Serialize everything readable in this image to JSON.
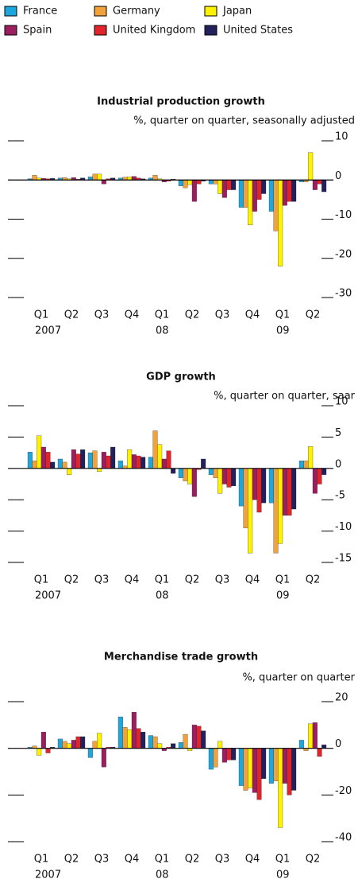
{
  "chart_data": [
    {
      "type": "bar",
      "title": "Industrial production growth",
      "subtitle": "%, quarter on quarter, seasonally adjusted",
      "categories": [
        "Q1",
        "Q2",
        "Q3",
        "Q4",
        "Q1",
        "Q2",
        "Q3",
        "Q4",
        "Q1",
        "Q2"
      ],
      "years": [
        "2007",
        null,
        null,
        null,
        "08",
        null,
        null,
        null,
        "09",
        null
      ],
      "ylim": [
        -30,
        10
      ],
      "yticks": [
        10,
        0,
        -10,
        -20,
        -30
      ],
      "series": [
        {
          "name": "France",
          "color": "#1ea7df",
          "values": [
            0.3,
            0.5,
            0.8,
            0.5,
            0.5,
            -1.5,
            -1.0,
            -7.0,
            -8.0,
            -0.5
          ]
        },
        {
          "name": "Germany",
          "color": "#f2a23a",
          "values": [
            1.2,
            0.6,
            1.5,
            0.7,
            1.2,
            -2.0,
            -1.0,
            -7.0,
            -13.0,
            -0.5
          ]
        },
        {
          "name": "Japan",
          "color": "#fff200",
          "values": [
            0.5,
            0.3,
            1.5,
            0.8,
            0.3,
            -1.2,
            -3.5,
            -11.5,
            -22.0,
            7.0
          ]
        },
        {
          "name": "Spain",
          "color": "#9b1f5f",
          "values": [
            0.4,
            0.6,
            -1.0,
            0.9,
            -0.5,
            -5.5,
            -4.5,
            -8.0,
            -6.5,
            -2.5
          ]
        },
        {
          "name": "United Kingdom",
          "color": "#e1232a",
          "values": [
            0.3,
            0.2,
            0.3,
            0.5,
            -0.3,
            -1.0,
            -2.5,
            -5.0,
            -5.5,
            -1.0
          ]
        },
        {
          "name": "United States",
          "color": "#22215e",
          "values": [
            0.4,
            0.5,
            0.5,
            0.3,
            0.2,
            -0.3,
            -2.5,
            -3.5,
            -5.5,
            -3.0
          ]
        }
      ]
    },
    {
      "type": "bar",
      "title": "GDP growth",
      "subtitle": "%, quarter on quarter, saar",
      "categories": [
        "Q1",
        "Q2",
        "Q3",
        "Q4",
        "Q1",
        "Q2",
        "Q3",
        "Q4",
        "Q1",
        "Q2"
      ],
      "years": [
        "2007",
        null,
        null,
        null,
        "08",
        null,
        null,
        null,
        "09",
        null
      ],
      "ylim": [
        -15,
        10
      ],
      "yticks": [
        10,
        5,
        0,
        -5,
        -10,
        -15
      ],
      "series": [
        {
          "values": [
            2.6,
            1.5,
            2.5,
            1.2,
            1.8,
            -1.5,
            -1.0,
            -6.0,
            -5.5,
            1.2
          ]
        },
        {
          "values": [
            1.2,
            1.0,
            2.8,
            0.4,
            6.0,
            -2.0,
            -1.5,
            -9.5,
            -13.5,
            1.2
          ]
        },
        {
          "values": [
            5.2,
            -1.0,
            -0.5,
            3.0,
            3.8,
            -2.5,
            -4.0,
            -13.5,
            -12.0,
            3.5
          ]
        },
        {
          "values": [
            3.4,
            3.0,
            2.6,
            2.2,
            1.5,
            -4.5,
            -2.5,
            -5.0,
            -7.5,
            -4.0
          ]
        },
        {
          "values": [
            2.6,
            2.3,
            2.0,
            2.0,
            2.8,
            -0.2,
            -3.0,
            -7.0,
            -7.5,
            -2.5
          ]
        },
        {
          "values": [
            1.0,
            3.0,
            3.4,
            1.8,
            -0.8,
            1.5,
            -2.8,
            -5.5,
            -6.5,
            -1.0
          ]
        }
      ]
    },
    {
      "type": "bar",
      "title": "Merchandise trade growth",
      "subtitle": "%, quarter on quarter",
      "categories": [
        "Q1",
        "Q2",
        "Q3",
        "Q4",
        "Q1",
        "Q2",
        "Q3",
        "Q4",
        "Q1",
        "Q2"
      ],
      "years": [
        "2007",
        null,
        null,
        null,
        "08",
        null,
        null,
        null,
        "09",
        null
      ],
      "ylim": [
        -40,
        20
      ],
      "yticks": [
        20,
        0,
        -20,
        -40
      ],
      "series": [
        {
          "values": [
            0.5,
            4.0,
            -4.0,
            13.5,
            5.5,
            2.5,
            -9.0,
            -16.0,
            -15.0,
            3.5
          ]
        },
        {
          "values": [
            1.0,
            3.0,
            3.0,
            9.0,
            5.0,
            6.0,
            -8.0,
            -18.0,
            -14.0,
            -1.0
          ]
        },
        {
          "values": [
            -3.0,
            2.0,
            6.5,
            8.0,
            2.0,
            -1.0,
            3.0,
            -17.0,
            -34.0,
            10.5
          ]
        },
        {
          "values": [
            7.0,
            3.5,
            -8.0,
            15.5,
            -1.0,
            10.0,
            -6.0,
            -19.0,
            -15.0,
            11.0
          ]
        },
        {
          "values": [
            -2.0,
            5.0,
            0.5,
            8.5,
            0.5,
            9.5,
            -5.0,
            -22.0,
            -20.0,
            -3.5
          ]
        },
        {
          "values": [
            0.5,
            5.0,
            0.5,
            7.0,
            2.0,
            7.5,
            -5.0,
            -13.0,
            -18.0,
            1.5
          ]
        }
      ]
    }
  ]
}
